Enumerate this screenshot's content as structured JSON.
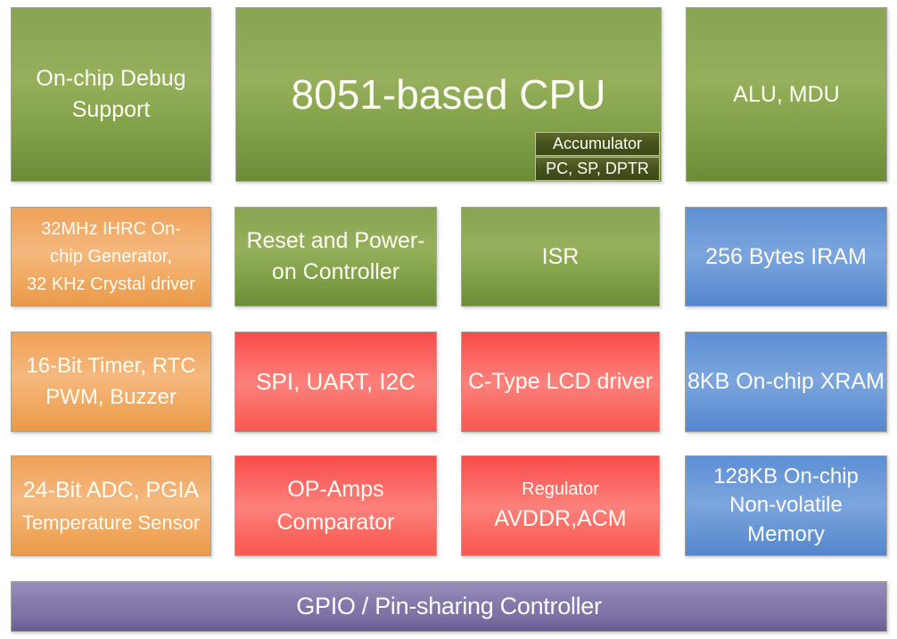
{
  "colors": {
    "green": "#84a24b",
    "orange": "#f2ac67",
    "red": "#fb706b",
    "blue": "#6c9ada",
    "purple": "#8478ab",
    "dark_olive": "#47531d",
    "text": "#fdfdf6",
    "background": "#ffffff"
  },
  "blocks": {
    "debug": {
      "lines": [
        "On-chip Debug",
        "Support"
      ]
    },
    "cpu": {
      "title": "8051-based CPU",
      "sub": {
        "accumulator": "Accumulator",
        "registers": "PC, SP, DPTR"
      }
    },
    "alu": {
      "label": "ALU, MDU"
    },
    "osc": {
      "lines": [
        "32MHz IHRC On-",
        "chip Generator,",
        "32 KHz Crystal driver"
      ]
    },
    "reset": {
      "lines": [
        "Reset and Power-",
        "on Controller"
      ]
    },
    "isr": {
      "label": "ISR"
    },
    "iram": {
      "label": "256 Bytes IRAM"
    },
    "timer": {
      "lines": [
        "16-Bit Timer, RTC",
        "PWM, Buzzer"
      ]
    },
    "spi": {
      "label": "SPI, UART, I2C"
    },
    "lcd": {
      "label": "C-Type LCD driver"
    },
    "xram": {
      "label": "8KB On-chip XRAM"
    },
    "adc": {
      "lines": [
        "24-Bit ADC, PGIA",
        "Temperature Sensor"
      ]
    },
    "opamps": {
      "lines": [
        "OP-Amps",
        "Comparator"
      ]
    },
    "regulator": {
      "lines": [
        "Regulator",
        "AVDDR,ACM"
      ]
    },
    "nvm": {
      "lines": [
        "128KB On-chip",
        "Non-volatile",
        "Memory"
      ]
    },
    "gpio": {
      "label": "GPIO / Pin-sharing Controller"
    }
  }
}
